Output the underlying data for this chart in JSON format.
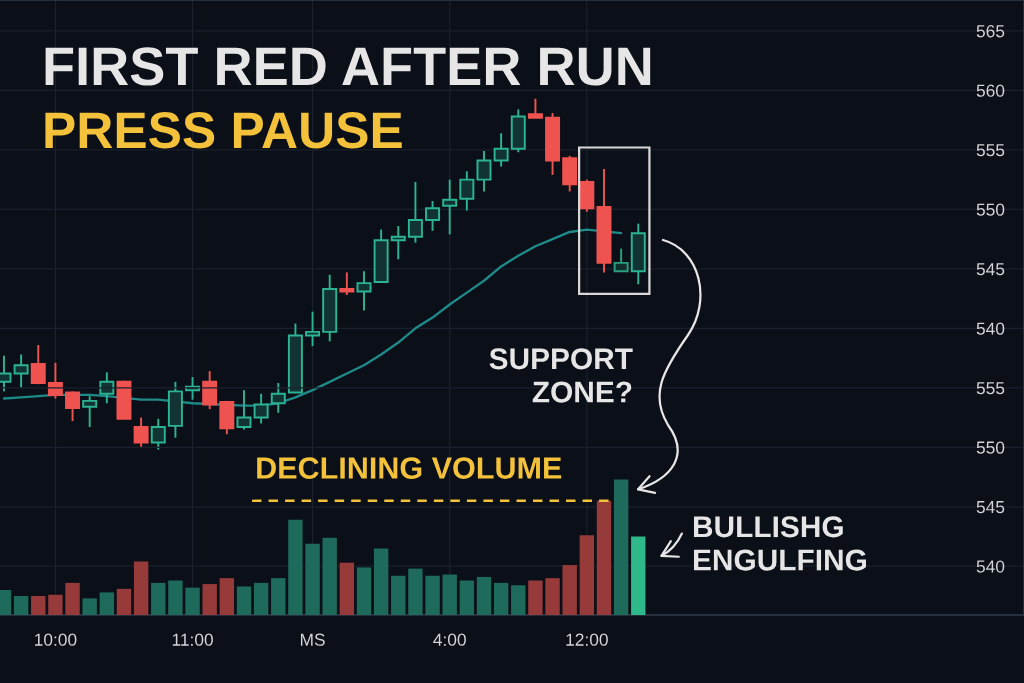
{
  "chart_data": {
    "type": "candlestick",
    "title": "FIRST RED AFTER RUN",
    "subtitle": "PRESS PAUSE",
    "categories": [
      null,
      null,
      null,
      "10:00",
      null,
      null,
      null,
      null,
      null,
      null,
      null,
      "11:00",
      null,
      null,
      null,
      null,
      null,
      null,
      "MS",
      null,
      null,
      null,
      null,
      null,
      null,
      null,
      "4:00",
      null,
      null,
      null,
      null,
      null,
      null,
      null,
      "12:00",
      null,
      null,
      null,
      null,
      null,
      null,
      null,
      null,
      null,
      null,
      null,
      null,
      null,
      null,
      null,
      null,
      null,
      null,
      null,
      null,
      null,
      null,
      null,
      null,
      null
    ],
    "ohlc": [
      [
        535.5,
        537.7,
        534.7,
        536.2
      ],
      [
        536.2,
        537.8,
        535.0,
        536.9
      ],
      [
        537.0,
        538.6,
        535.3,
        535.4
      ],
      [
        535.4,
        537.1,
        534.1,
        534.4
      ],
      [
        534.6,
        534.7,
        532.2,
        533.3
      ],
      [
        533.4,
        534.3,
        531.7,
        533.9
      ],
      [
        534.5,
        536.3,
        533.7,
        535.5
      ],
      [
        535.5,
        535.6,
        532.4,
        532.4
      ],
      [
        531.7,
        532.5,
        530.0,
        530.4
      ],
      [
        530.4,
        532.4,
        529.8,
        531.7
      ],
      [
        531.8,
        535.5,
        530.8,
        534.7
      ],
      [
        534.8,
        535.9,
        534.0,
        535.1
      ],
      [
        535.5,
        536.4,
        533.2,
        533.6
      ],
      [
        533.8,
        533.9,
        531.1,
        531.6
      ],
      [
        531.7,
        534.8,
        531.5,
        532.5
      ],
      [
        532.5,
        534.5,
        532.0,
        533.6
      ],
      [
        533.7,
        535.4,
        532.9,
        534.5
      ],
      [
        534.6,
        540.4,
        534.6,
        539.4
      ],
      [
        539.4,
        541.4,
        538.5,
        539.7
      ],
      [
        539.7,
        544.5,
        538.9,
        543.3
      ],
      [
        543.3,
        544.7,
        542.8,
        543.1
      ],
      [
        543.1,
        544.8,
        541.5,
        543.8
      ],
      [
        543.9,
        548.3,
        543.9,
        547.4
      ],
      [
        547.4,
        548.6,
        545.8,
        547.7
      ],
      [
        547.7,
        552.3,
        547.2,
        549.1
      ],
      [
        549.1,
        550.7,
        548.2,
        550.1
      ],
      [
        550.3,
        552.5,
        547.9,
        550.8
      ],
      [
        550.9,
        553.2,
        549.9,
        552.5
      ],
      [
        552.5,
        554.9,
        551.5,
        554.1
      ],
      [
        554.1,
        556.4,
        553.6,
        555.1
      ],
      [
        555.1,
        558.4,
        554.8,
        557.8
      ],
      [
        558.0,
        559.3,
        557.7,
        557.7
      ],
      [
        557.7,
        558.1,
        552.9,
        554.1
      ],
      [
        554.3,
        554.5,
        551.5,
        552.1
      ],
      [
        552.3,
        552.5,
        549.8,
        550.1
      ],
      [
        550.2,
        553.4,
        544.7,
        545.5
      ],
      [
        544.8,
        546.7,
        544.8,
        545.5
      ],
      [
        544.8,
        548.8,
        543.7,
        548.0
      ],
      null,
      null,
      null,
      null,
      null,
      null,
      null,
      null,
      null,
      null,
      null,
      null,
      null,
      null,
      null,
      null,
      null,
      null,
      null,
      null,
      null,
      null
    ],
    "colors": [
      "#2bb394",
      "#2bb394",
      "#ef5350",
      "#ef5350",
      "#ef5350",
      "#2bb394",
      "#2bb394",
      "#ef5350",
      "#ef5350",
      "#2bb394",
      "#2bb394",
      "#2bb394",
      "#ef5350",
      "#ef5350",
      "#2bb394",
      "#2bb394",
      "#2bb394",
      "#2bb394",
      "#2bb394",
      "#2bb394",
      "#ef5350",
      "#2bb394",
      "#2bb394",
      "#2bb394",
      "#2bb394",
      "#2bb394",
      "#2bb394",
      "#2bb394",
      "#2bb394",
      "#2bb394",
      "#2bb394",
      "#ef5350",
      "#ef5350",
      "#ef5350",
      "#ef5350",
      "#ef5350",
      "#2a9f7e",
      "#2bb394",
      null,
      null,
      null,
      null,
      null,
      null,
      null,
      null,
      null,
      null,
      null,
      null,
      null,
      null,
      null,
      null,
      null,
      null,
      null,
      null,
      null,
      null
    ],
    "series": [
      {
        "type": "line",
        "color": "#1f8a8a",
        "values": [
          534.1,
          534.2,
          534.3,
          534.4,
          534.4,
          534.4,
          534.3,
          null,
          534.0,
          534.0,
          null,
          533.7,
          null,
          null,
          533.5,
          533.5,
          533.7,
          534.2,
          534.8,
          535.5,
          536.2,
          536.9,
          537.8,
          538.8,
          540.0,
          540.9,
          542.0,
          543.0,
          544.0,
          545.2,
          546.1,
          546.9,
          547.5,
          548.1,
          548.3,
          null,
          548.0,
          null,
          null,
          null,
          null,
          null,
          null,
          null,
          null,
          null,
          null,
          null,
          null,
          null,
          null,
          null,
          null,
          null,
          null,
          null,
          null,
          null,
          null,
          null
        ]
      },
      {
        "type": "bar",
        "axis": "y2",
        "values": [
          2.1,
          1.6,
          1.6,
          1.7,
          2.7,
          1.4,
          1.9,
          2.2,
          4.5,
          2.7,
          2.9,
          2.3,
          2.6,
          3.1,
          2.4,
          2.7,
          3.1,
          8.0,
          6.0,
          6.5,
          4.4,
          4.0,
          5.6,
          3.3,
          3.9,
          3.3,
          3.4,
          2.9,
          3.2,
          2.7,
          2.5,
          2.9,
          3.1,
          4.2,
          6.7,
          9.6,
          11.4,
          6.6,
          null,
          null,
          null,
          null,
          null,
          null,
          null,
          null,
          null,
          null,
          null,
          null,
          null,
          null,
          null,
          null,
          null,
          null,
          null,
          null,
          null,
          null
        ],
        "base": [
          535.9,
          535.9,
          535.9,
          535.9,
          535.9,
          535.9,
          535.9,
          535.9,
          535.9,
          535.9,
          535.9,
          535.9,
          535.9,
          535.9,
          535.9,
          535.9,
          535.9,
          535.9,
          535.9,
          535.9,
          535.9,
          535.9,
          535.9,
          535.9,
          535.9,
          535.9,
          535.9,
          535.9,
          535.9,
          535.9,
          535.9,
          535.9,
          535.9,
          535.9,
          535.9,
          535.9,
          535.9,
          535.9,
          null,
          null,
          null,
          null,
          null,
          null,
          null,
          null,
          null,
          null,
          null,
          null,
          null,
          null,
          null,
          null,
          null,
          null,
          null,
          null,
          null,
          null
        ],
        "colors": [
          "#1f6b5b",
          "#1f6b5b",
          "#973a3a",
          "#973a3a",
          "#973a3a",
          "#1f6b5b",
          "#1f6b5b",
          "#973a3a",
          "#973a3a",
          "#1f6b5b",
          "#1f6b5b",
          "#1f6b5b",
          "#973a3a",
          "#973a3a",
          "#1f6b5b",
          "#1f6b5b",
          "#1f6b5b",
          "#1f6b5b",
          "#1f6b5b",
          "#1f6b5b",
          "#973a3a",
          "#1f6b5b",
          "#1f6b5b",
          "#1f6b5b",
          "#1f6b5b",
          "#1f6b5b",
          "#1f6b5b",
          "#1f6b5b",
          "#1f6b5b",
          "#1f6b5b",
          "#1f6b5b",
          "#973a3a",
          "#973a3a",
          "#973a3a",
          "#973a3a",
          "#973a3a",
          "#1f6b5b",
          "#2fb98a",
          null,
          null,
          null,
          null,
          null,
          null,
          null,
          null,
          null,
          null,
          null,
          null,
          null,
          null,
          null,
          null,
          null,
          null,
          null,
          null,
          null,
          null
        ]
      }
    ],
    "ylim": [
      515.9,
      567.6
    ],
    "yticks": [
      565,
      560,
      555,
      550,
      545,
      540
    ],
    "y2lim": [
      535.9,
      587.6
    ],
    "y2ticks": [
      555,
      550,
      545,
      540
    ],
    "grid": true,
    "ref_lines": [
      {
        "axis": "y2",
        "value": 545.5,
        "label": "DECLINING VOLUME",
        "color": "#f4c23a",
        "line_style": "dashed"
      }
    ],
    "annotations": [
      "SUPPORT\nZONE?",
      "BULLISHG\nENGULFING"
    ]
  }
}
